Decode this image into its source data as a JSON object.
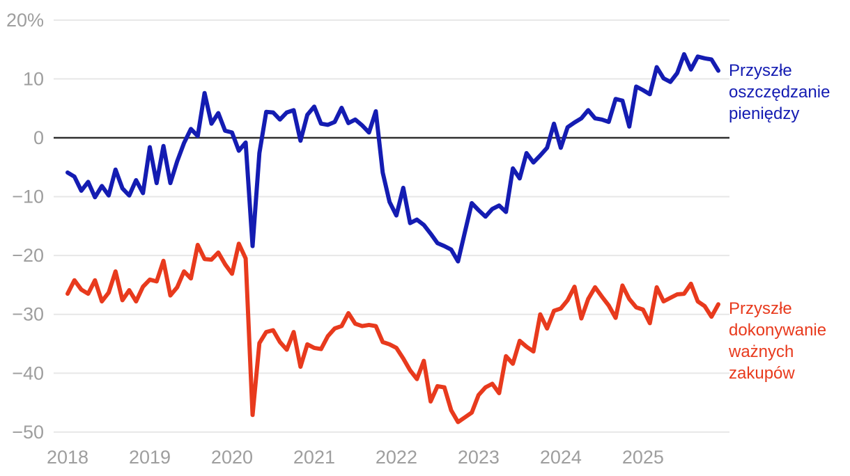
{
  "chart_data": {
    "type": "line",
    "title": "",
    "x_start_year": 2018,
    "points_per_year": 12,
    "x_tick_labels": [
      "2018",
      "2019",
      "2020",
      "2021",
      "2022",
      "2023",
      "2024",
      "2025"
    ],
    "y_ticks": [
      20,
      10,
      0,
      -10,
      -20,
      -30,
      -40,
      -50
    ],
    "y_tick_labels": [
      "20%",
      "10",
      "0",
      "−10",
      "−20",
      "−30",
      "−40",
      "−50"
    ],
    "ylim": [
      -50,
      20
    ],
    "grid": true,
    "zero_line": true,
    "legend_position": "right",
    "series": [
      {
        "name": "Przyszłe oszczędzanie pieniędzy",
        "color": "#141cb2",
        "values": [
          -5.9,
          -6.6,
          -9.0,
          -7.5,
          -10.1,
          -8.2,
          -9.8,
          -5.4,
          -8.6,
          -9.8,
          -7.2,
          -9.4,
          -1.6,
          -7.7,
          -1.4,
          -7.7,
          -4.0,
          -0.9,
          1.5,
          0.3,
          7.6,
          2.4,
          4.2,
          1.2,
          0.9,
          -2.2,
          -0.8,
          -18.4,
          -2.6,
          4.4,
          4.3,
          3.1,
          4.3,
          4.7,
          -0.5,
          3.9,
          5.3,
          2.4,
          2.2,
          2.7,
          5.1,
          2.5,
          3.1,
          2.1,
          0.9,
          4.5,
          -5.9,
          -10.9,
          -13.2,
          -8.5,
          -14.5,
          -13.9,
          -14.8,
          -16.3,
          -17.9,
          -18.4,
          -19.0,
          -21.0,
          -16.0,
          -11.1,
          -12.3,
          -13.4,
          -12.1,
          -11.5,
          -12.6,
          -5.2,
          -6.9,
          -2.6,
          -4.2,
          -3.0,
          -1.7,
          2.4,
          -1.7,
          1.8,
          2.6,
          3.3,
          4.7,
          3.3,
          3.1,
          2.7,
          6.6,
          6.3,
          1.9,
          8.7,
          8.1,
          7.4,
          12.0,
          10.1,
          9.5,
          11.0,
          14.2,
          11.6,
          13.8,
          13.5,
          13.3,
          11.4
        ]
      },
      {
        "name": "Przyszłe dokonywanie ważnych zakupów",
        "color": "#e83a1d",
        "values": [
          -26.5,
          -24.2,
          -25.8,
          -26.5,
          -24.2,
          -27.8,
          -26.3,
          -22.7,
          -27.6,
          -25.9,
          -27.8,
          -25.3,
          -24.1,
          -24.4,
          -20.9,
          -26.8,
          -25.4,
          -22.7,
          -23.9,
          -18.2,
          -20.6,
          -20.7,
          -19.5,
          -21.5,
          -23.1,
          -18.0,
          -20.5,
          -47.1,
          -34.9,
          -33.0,
          -32.7,
          -34.7,
          -36.0,
          -33.0,
          -38.9,
          -35.1,
          -35.7,
          -35.9,
          -33.7,
          -32.4,
          -32.0,
          -29.8,
          -31.6,
          -32.0,
          -31.8,
          -32.0,
          -34.7,
          -35.1,
          -35.7,
          -37.5,
          -39.5,
          -41.0,
          -37.9,
          -44.8,
          -42.2,
          -42.4,
          -46.3,
          -48.3,
          -47.5,
          -46.7,
          -43.7,
          -42.4,
          -41.8,
          -43.4,
          -37.1,
          -38.4,
          -34.5,
          -35.5,
          -36.3,
          -30.0,
          -32.4,
          -29.4,
          -29.0,
          -27.6,
          -25.3,
          -30.7,
          -27.4,
          -25.4,
          -27.0,
          -28.5,
          -30.6,
          -25.1,
          -27.4,
          -28.8,
          -29.2,
          -31.5,
          -25.4,
          -27.8,
          -27.2,
          -26.6,
          -26.5,
          -24.8,
          -27.8,
          -28.6,
          -30.4,
          -28.3
        ]
      }
    ]
  },
  "legend": {
    "savings": {
      "lines": [
        "Przyszłe",
        "oszczędzanie",
        "pieniędzy"
      ]
    },
    "purchases": {
      "lines": [
        "Przyszłe",
        "dokonywanie",
        "ważnych",
        "zakupów"
      ]
    }
  },
  "colors": {
    "background": "#ffffff",
    "grid_line": "#e7e7e7",
    "zero_line": "#2f2f2f",
    "tick_label": "#9e9e9e"
  }
}
